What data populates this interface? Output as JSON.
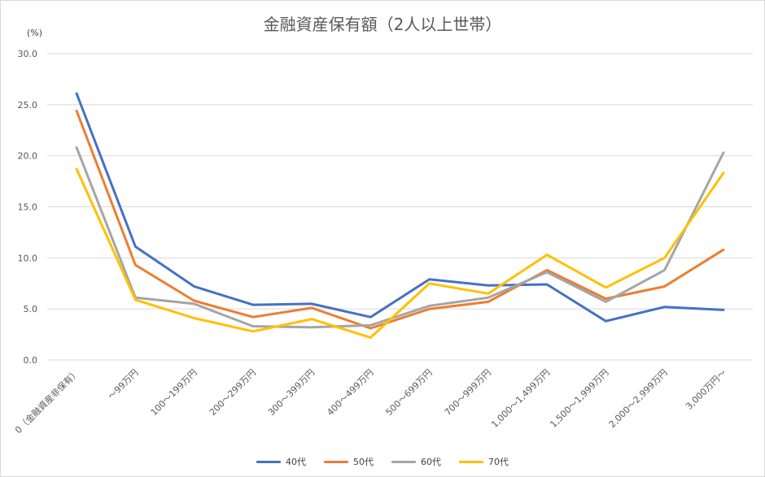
{
  "chart_data": {
    "type": "line",
    "title": "金融資産保有額（2人以上世帯）",
    "ylabel": "(%)",
    "ylim": [
      0,
      30
    ],
    "yticks": [
      "0.0",
      "5.0",
      "10.0",
      "15.0",
      "20.0",
      "25.0",
      "30.0"
    ],
    "categories": [
      "0（金融資産非保有）",
      "～99万円",
      "100～199万円",
      "200～299万円",
      "300～399万円",
      "400～499万円",
      "500～699万円",
      "700～999万円",
      "1,000～1,499万円",
      "1,500～1,999万円",
      "2,000～2,999万円",
      "3,000万円～"
    ],
    "series": [
      {
        "name": "40代",
        "color": "#4472c4",
        "values": [
          26.1,
          11.1,
          7.2,
          5.4,
          5.5,
          4.2,
          7.9,
          7.3,
          7.4,
          3.8,
          5.2,
          4.9
        ]
      },
      {
        "name": "50代",
        "color": "#ed7d31",
        "values": [
          24.4,
          9.3,
          5.8,
          4.2,
          5.1,
          3.1,
          5.0,
          5.7,
          8.8,
          6.0,
          7.2,
          10.8
        ]
      },
      {
        "name": "60代",
        "color": "#a5a5a5",
        "values": [
          20.8,
          6.1,
          5.5,
          3.3,
          3.2,
          3.4,
          5.3,
          6.1,
          8.6,
          5.7,
          8.8,
          20.3
        ]
      },
      {
        "name": "70代",
        "color": "#ffc000",
        "values": [
          18.7,
          5.9,
          4.1,
          2.8,
          4.0,
          2.2,
          7.5,
          6.5,
          10.3,
          7.1,
          10.0,
          18.3
        ]
      }
    ],
    "grid": true,
    "legend": "bottom"
  }
}
